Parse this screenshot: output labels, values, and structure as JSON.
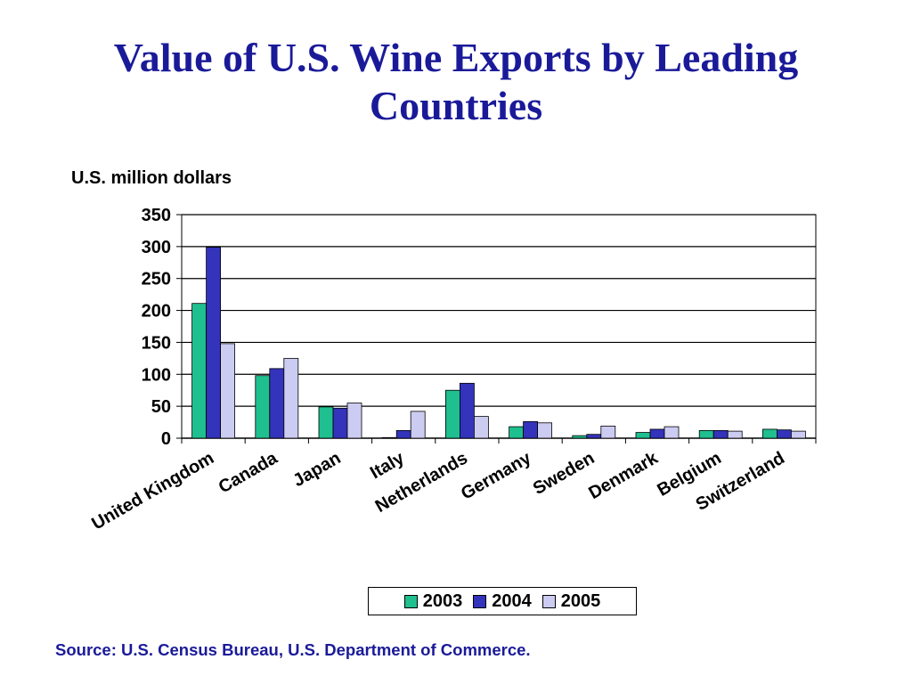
{
  "title_lines": [
    "Value of U.S. Wine Exports by Leading",
    "Countries"
  ],
  "unit_label": "U.S. million dollars",
  "source": "Source: U.S. Census Bureau, U.S. Department of Commerce.",
  "colors": {
    "2003": "#1fbf8f",
    "2004": "#3333bb",
    "2005": "#ccccf2",
    "title": "#1a1a99"
  },
  "chart_data": {
    "type": "bar",
    "title": "Value of U.S. Wine Exports by Leading Countries",
    "ylabel": "U.S. million dollars",
    "ylim": [
      0,
      350
    ],
    "yticks": [
      0,
      50,
      100,
      150,
      200,
      250,
      300,
      350
    ],
    "grid": true,
    "legend": "bottom",
    "categories": [
      "United Kingdom",
      "Canada",
      "Japan",
      "Italy",
      "Netherlands",
      "Germany",
      "Sweden",
      "Denmark",
      "Belgium",
      "Switzerland"
    ],
    "series": [
      {
        "name": "2003",
        "values": [
          211,
          98,
          49,
          1,
          75,
          18,
          4,
          9,
          12,
          14
        ]
      },
      {
        "name": "2004",
        "values": [
          299,
          109,
          47,
          12,
          86,
          26,
          6,
          14,
          12,
          13
        ]
      },
      {
        "name": "2005",
        "values": [
          148,
          125,
          55,
          42,
          34,
          24,
          19,
          18,
          11,
          11
        ]
      }
    ]
  }
}
